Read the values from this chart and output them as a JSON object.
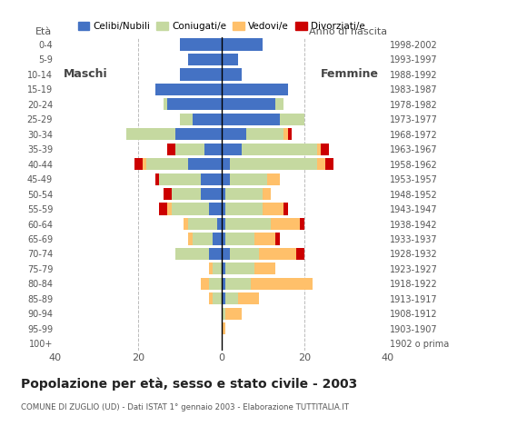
{
  "age_groups": [
    "100+",
    "95-99",
    "90-94",
    "85-89",
    "80-84",
    "75-79",
    "70-74",
    "65-69",
    "60-64",
    "55-59",
    "50-54",
    "45-49",
    "40-44",
    "35-39",
    "30-34",
    "25-29",
    "20-24",
    "15-19",
    "10-14",
    "5-9",
    "0-4"
  ],
  "birth_years": [
    "1902 o prima",
    "1903-1907",
    "1908-1912",
    "1913-1917",
    "1918-1922",
    "1923-1927",
    "1928-1932",
    "1933-1937",
    "1938-1942",
    "1943-1947",
    "1948-1952",
    "1953-1957",
    "1958-1962",
    "1963-1967",
    "1968-1972",
    "1973-1977",
    "1978-1982",
    "1983-1987",
    "1988-1992",
    "1993-1997",
    "1998-2002"
  ],
  "males": {
    "celibi": [
      0,
      0,
      0,
      0,
      0,
      0,
      3,
      2,
      1,
      3,
      5,
      5,
      8,
      4,
      11,
      7,
      13,
      16,
      10,
      8,
      10
    ],
    "coniugati": [
      0,
      0,
      0,
      2,
      3,
      2,
      8,
      5,
      7,
      9,
      7,
      10,
      10,
      7,
      12,
      3,
      1,
      0,
      0,
      0,
      0
    ],
    "vedovi": [
      0,
      0,
      0,
      1,
      2,
      1,
      0,
      1,
      1,
      1,
      0,
      0,
      1,
      0,
      0,
      0,
      0,
      0,
      0,
      0,
      0
    ],
    "divorziati": [
      0,
      0,
      0,
      0,
      0,
      0,
      0,
      0,
      0,
      2,
      2,
      1,
      2,
      2,
      0,
      0,
      0,
      0,
      0,
      0,
      0
    ]
  },
  "females": {
    "celibi": [
      0,
      0,
      0,
      1,
      1,
      1,
      2,
      1,
      1,
      1,
      1,
      2,
      2,
      5,
      6,
      14,
      13,
      16,
      5,
      4,
      10
    ],
    "coniugati": [
      0,
      0,
      1,
      3,
      6,
      7,
      7,
      7,
      11,
      9,
      9,
      9,
      21,
      18,
      9,
      6,
      2,
      0,
      0,
      0,
      0
    ],
    "vedovi": [
      0,
      1,
      4,
      5,
      15,
      5,
      9,
      5,
      7,
      5,
      2,
      3,
      2,
      1,
      1,
      0,
      0,
      0,
      0,
      0,
      0
    ],
    "divorziati": [
      0,
      0,
      0,
      0,
      0,
      0,
      2,
      1,
      1,
      1,
      0,
      0,
      2,
      2,
      1,
      0,
      0,
      0,
      0,
      0,
      0
    ]
  },
  "colors": {
    "celibi": "#4472c4",
    "coniugati": "#c5d9a0",
    "vedovi": "#ffc06a",
    "divorziati": "#cc0000"
  },
  "title": "Popolazione per età, sesso e stato civile - 2003",
  "subtitle": "COMUNE DI ZUGLIO (UD) - Dati ISTAT 1° gennaio 2003 - Elaborazione TUTTITALIA.IT",
  "ylabel_left": "Età",
  "ylabel_right": "Anno di nascita",
  "label_maschi": "Maschi",
  "label_femmine": "Femmine",
  "legend_labels": [
    "Celibi/Nubili",
    "Coniugati/e",
    "Vedovi/e",
    "Divorziati/e"
  ],
  "xlim": 40,
  "bg_color": "#ffffff",
  "plot_bg": "#ffffff",
  "grid_color": "#bbbbbb"
}
